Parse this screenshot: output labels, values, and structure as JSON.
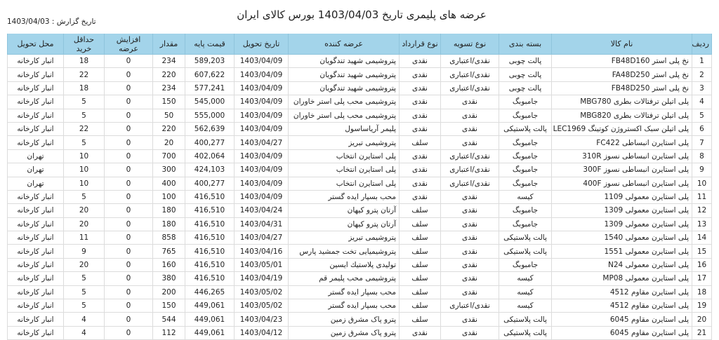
{
  "title": "عرضه های پلیمری تاریخ  1403/04/03  بورس کالای ایران",
  "report_date": "تاریخ گزارش : 1403/04/03",
  "colors": {
    "header_bg": "#a3d4ea"
  },
  "columns": [
    "ردیف",
    "نام کالا",
    "بسته بندی",
    "نوع تسویه",
    "نوع قرارداد",
    "عرضه کننده",
    "تاریخ تحویل",
    "قیمت پایه",
    "مقدار",
    "افزایش عرضه",
    "حداقل خرید",
    "محل تحویل"
  ],
  "rows": [
    [
      "1",
      "نخ پلی استر FB48D160",
      "پالت چوبی",
      "نقدی/اعتباری",
      "نقدی",
      "پتروشیمی شهید تندگویان",
      "1403/04/09",
      "589,203",
      "234",
      "0",
      "18",
      "انبار کارخانه"
    ],
    [
      "2",
      "نخ پلی استر FA48D250",
      "پالت چوبی",
      "نقدی/اعتباری",
      "نقدی",
      "پتروشیمی شهید تندگویان",
      "1403/04/09",
      "607,622",
      "220",
      "0",
      "22",
      "انبار کارخانه"
    ],
    [
      "3",
      "نخ پلی استر FB48D250",
      "پالت چوبی",
      "نقدی/اعتباری",
      "نقدی",
      "پتروشیمی شهید تندگویان",
      "1403/04/09",
      "577,241",
      "234",
      "0",
      "18",
      "انبار کارخانه"
    ],
    [
      "4",
      "پلی اتیلن ترفتالات بطری MBG780",
      "جامبوبگ",
      "نقدی",
      "نقدی",
      "پتروشیمی محب پلی استر خاوران",
      "1403/04/09",
      "545,000",
      "150",
      "0",
      "5",
      "انبار کارخانه"
    ],
    [
      "5",
      "پلی اتیلن ترفتالات بطری MBG820",
      "جامبوبگ",
      "نقدی",
      "نقدی",
      "پتروشیمی محب پلی استر خاوران",
      "1403/04/09",
      "555,000",
      "50",
      "0",
      "5",
      "انبار کارخانه"
    ],
    [
      "6",
      "پلی اتیلن سبک اکستروژن کوتینگ LEC1969",
      "پالت پلاستیکی",
      "نقدی",
      "نقدی",
      "پلیمر آریاساسول",
      "1403/04/09",
      "562,639",
      "220",
      "0",
      "22",
      "انبار کارخانه"
    ],
    [
      "7",
      "پلی استایرن انبساطی FC422",
      "جامبوبگ",
      "نقدی",
      "سلف",
      "پتروشیمی تبریز",
      "1403/04/27",
      "400,277",
      "20",
      "0",
      "5",
      "انبار کارخانه"
    ],
    [
      "8",
      "پلی استایرن انبساطی نسوز 310R",
      "جامبوبگ",
      "نقدی/اعتباری",
      "نقدی",
      "پلی استایرن انتخاب",
      "1403/04/09",
      "402,064",
      "700",
      "0",
      "10",
      "تهران"
    ],
    [
      "9",
      "پلی استایرن انبساطی نسوز 300F",
      "جامبوبگ",
      "نقدی/اعتباری",
      "نقدی",
      "پلی استایرن انتخاب",
      "1403/04/09",
      "424,103",
      "300",
      "0",
      "10",
      "تهران"
    ],
    [
      "10",
      "پلی استایرن انبساطی نسوز 400F",
      "جامبوبگ",
      "نقدی/اعتباری",
      "نقدی",
      "پلی استایرن انتخاب",
      "1403/04/09",
      "400,277",
      "400",
      "0",
      "10",
      "تهران"
    ],
    [
      "11",
      "پلی استایرن معمولی 1109",
      "کیسه",
      "نقدی",
      "نقدی",
      "محب بسپار ایده گستر",
      "1403/04/09",
      "416,510",
      "100",
      "0",
      "5",
      "انبار کارخانه"
    ],
    [
      "12",
      "پلی استایرن معمولی 1309",
      "جامبوبگ",
      "نقدی",
      "سلف",
      "آرتان پترو کیهان",
      "1403/04/24",
      "416,510",
      "180",
      "0",
      "20",
      "انبار کارخانه"
    ],
    [
      "13",
      "پلی استایرن معمولی 1309",
      "جامبوبگ",
      "نقدی",
      "سلف",
      "آرتان پترو کیهان",
      "1403/04/31",
      "416,510",
      "180",
      "0",
      "20",
      "انبار کارخانه"
    ],
    [
      "14",
      "پلی استایرن معمولی 1540",
      "پالت پلاستیکی",
      "نقدی",
      "سلف",
      "پتروشیمی تبریز",
      "1403/04/27",
      "416,510",
      "858",
      "0",
      "11",
      "انبار کارخانه"
    ],
    [
      "15",
      "پلی استایرن معمولی 1551",
      "پالت پلاستیکی",
      "نقدی",
      "سلف",
      "پتروشیمیایی تخت جمشید پارس",
      "1403/04/16",
      "416,510",
      "765",
      "0",
      "9",
      "انبار کارخانه"
    ],
    [
      "16",
      "پلی استایرن معمولی N24",
      "جامبوبگ",
      "نقدی",
      "سلف",
      "تولیدی پلاستیك ایسین",
      "1403/05/01",
      "416,510",
      "160",
      "0",
      "20",
      "انبار کارخانه"
    ],
    [
      "17",
      "پلی استایرن معمولی MP08",
      "کیسه",
      "نقدی",
      "سلف",
      "پتروشیمی محب پلیمر قم",
      "1403/04/19",
      "416,510",
      "380",
      "0",
      "5",
      "انبار کارخانه"
    ],
    [
      "18",
      "پلی استایرن مقاوم 4512",
      "کیسه",
      "نقدی",
      "سلف",
      "محب بسپار ایده گستر",
      "1403/05/02",
      "446,265",
      "200",
      "0",
      "5",
      "انبار کارخانه"
    ],
    [
      "19",
      "پلی استایرن مقاوم 4512",
      "کیسه",
      "نقدی/اعتباری",
      "سلف",
      "محب بسپار ایده گستر",
      "1403/05/02",
      "449,061",
      "150",
      "0",
      "5",
      "انبار کارخانه"
    ],
    [
      "20",
      "پلی استایرن مقاوم 6045",
      "پالت پلاستیکی",
      "نقدی",
      "سلف",
      "پترو پاک مشرق زمین",
      "1403/04/23",
      "449,061",
      "544",
      "0",
      "4",
      "انبار کارخانه"
    ],
    [
      "21",
      "پلی استایرن مقاوم 6045",
      "پالت پلاستیکی",
      "نقدی",
      "نقدی",
      "پترو پاک مشرق زمین",
      "1403/04/12",
      "449,061",
      "112",
      "0",
      "4",
      "انبار کارخانه"
    ]
  ]
}
